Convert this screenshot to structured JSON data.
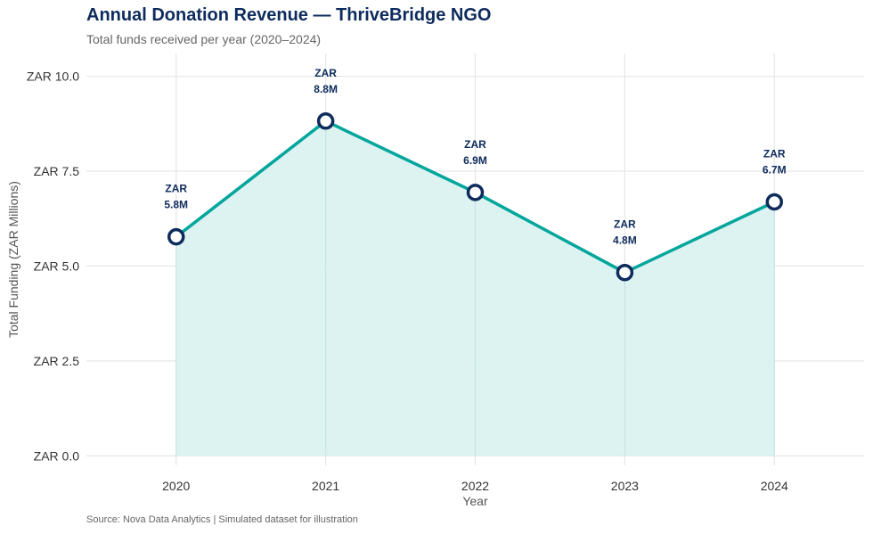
{
  "chart_data": {
    "type": "area",
    "title": "Annual Donation Revenue — ThriveBridge NGO",
    "subtitle": "Total funds received per year (2020–2024)",
    "caption": "Source: Nova Data Analytics | Simulated dataset for illustration",
    "xlabel": "Year",
    "ylabel": "Total Funding (ZAR Millions)",
    "x": [
      2020,
      2021,
      2022,
      2023,
      2024
    ],
    "values": [
      5.77,
      8.82,
      6.94,
      4.83,
      6.69
    ],
    "data_labels": [
      [
        "ZAR",
        "5.8M"
      ],
      [
        "ZAR",
        "8.8M"
      ],
      [
        "ZAR",
        "6.9M"
      ],
      [
        "ZAR",
        "4.8M"
      ],
      [
        "ZAR",
        "6.7M"
      ]
    ],
    "xlim": [
      2019.4,
      2024.6
    ],
    "ylim": [
      -0.25,
      10.6
    ],
    "yticks": [
      0,
      2.5,
      5,
      7.5,
      10
    ],
    "ytick_labels": [
      "ZAR 0.0",
      "ZAR 2.5",
      "ZAR 5.0",
      "ZAR 7.5",
      "ZAR 10.0"
    ],
    "xtick_labels": [
      "2020",
      "2021",
      "2022",
      "2023",
      "2024"
    ],
    "grid": true,
    "legend": "none",
    "colors": {
      "line": "#00a69c",
      "fill": "#d8f2f1",
      "marker_edge": "#0d2b5c",
      "marker_fill": "#ffffff",
      "label": "#0d2b5c",
      "title": "#0d2b5c"
    }
  }
}
